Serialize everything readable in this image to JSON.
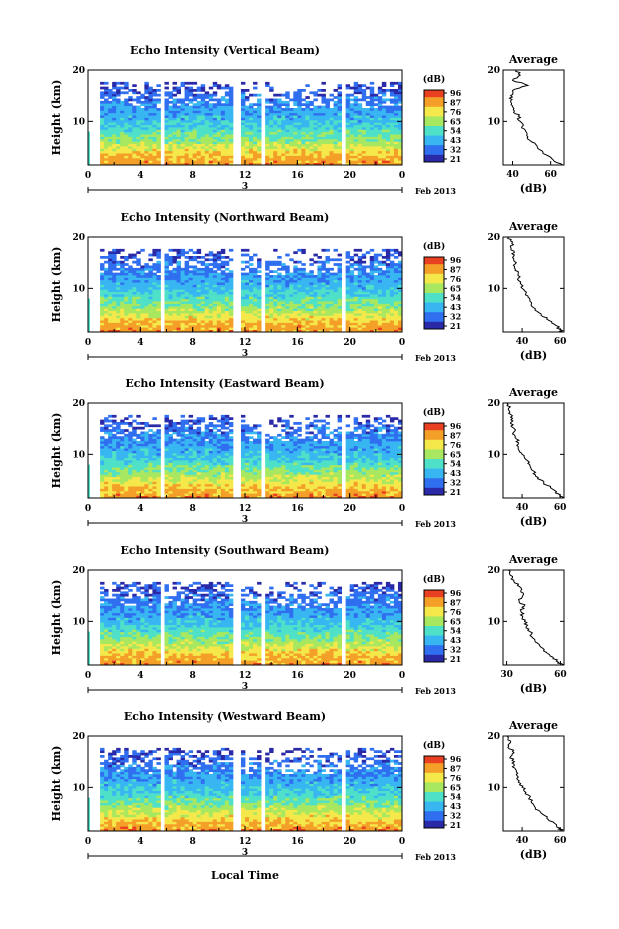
{
  "figure": {
    "xlabel": "Local Time",
    "date_label": "Feb 2013",
    "day_label": "3",
    "colorbar_unit": "(dB)",
    "colorbar_ticks": [
      "96",
      "87",
      "76",
      "65",
      "54",
      "43",
      "32",
      "21"
    ],
    "profile_title": "Average",
    "profile_xlabel": "(dB)",
    "height_label": "Height (km)",
    "colors": [
      "#2a2aa8",
      "#2f6ff0",
      "#38b6f2",
      "#4fe0c8",
      "#a8e860",
      "#f4e84a",
      "#f4a028",
      "#e84020"
    ]
  },
  "chart_data": [
    {
      "type": "heatmap",
      "title": "Echo Intensity (Vertical Beam)",
      "xlabel": "Local Time",
      "ylabel": "Height (km)",
      "x_ticks": [
        "0",
        "4",
        "8",
        "12",
        "16",
        "20",
        "0"
      ],
      "y_ticks": [
        "20",
        "10"
      ],
      "xlim": [
        0,
        24
      ],
      "ylim": [
        1.5,
        20
      ],
      "colorbar_ticks": [
        "96",
        "87",
        "76",
        "65",
        "54",
        "43",
        "32",
        "21"
      ],
      "colorbar_range_dB": [
        21,
        96
      ],
      "gaps_local_time": [
        [
          5.6,
          5.9
        ],
        [
          11.2,
          11.6
        ],
        [
          13.2,
          13.5
        ],
        [
          19.5,
          19.8
        ]
      ],
      "profile": {
        "title": "Average",
        "xlabel": "(dB)",
        "x_ticks": [
          "40",
          "60"
        ],
        "xlim": [
          35,
          67
        ],
        "y_ticks": [
          "20",
          "10"
        ],
        "heights_km": [
          1.5,
          2,
          3,
          4,
          5,
          6,
          7,
          8,
          9,
          10,
          11,
          12,
          13,
          14,
          15,
          16,
          17,
          18,
          19,
          20
        ],
        "values_dB": [
          66,
          63,
          60,
          56,
          53,
          50,
          48,
          47,
          45,
          44,
          43,
          41,
          40,
          39,
          39,
          40,
          48,
          40,
          44,
          42
        ]
      }
    },
    {
      "type": "heatmap",
      "title": "Echo Intensity (Northward Beam)",
      "xlabel": "Local Time",
      "ylabel": "Height (km)",
      "x_ticks": [
        "0",
        "4",
        "8",
        "12",
        "16",
        "20",
        "0"
      ],
      "y_ticks": [
        "20",
        "10"
      ],
      "xlim": [
        0,
        24
      ],
      "ylim": [
        1.5,
        20
      ],
      "colorbar_ticks": [
        "96",
        "87",
        "76",
        "65",
        "54",
        "43",
        "32",
        "21"
      ],
      "colorbar_range_dB": [
        21,
        96
      ],
      "gaps_local_time": [
        [
          5.6,
          5.9
        ],
        [
          11.2,
          11.6
        ],
        [
          13.2,
          13.5
        ],
        [
          19.5,
          19.8
        ]
      ],
      "profile": {
        "title": "Average",
        "xlabel": "(dB)",
        "x_ticks": [
          "40",
          "60"
        ],
        "xlim": [
          30,
          62
        ],
        "y_ticks": [
          "20",
          "10"
        ],
        "heights_km": [
          1.5,
          2,
          3,
          4,
          5,
          6,
          7,
          8,
          9,
          10,
          11,
          12,
          13,
          14,
          15,
          16,
          17,
          18,
          19,
          20
        ],
        "values_dB": [
          61,
          60,
          57,
          53,
          50,
          47,
          45,
          44,
          42,
          40,
          39,
          38,
          38,
          36,
          37,
          35,
          36,
          34,
          35,
          33
        ]
      }
    },
    {
      "type": "heatmap",
      "title": "Echo Intensity (Eastward Beam)",
      "xlabel": "Local Time",
      "ylabel": "Height (km)",
      "x_ticks": [
        "0",
        "4",
        "8",
        "12",
        "16",
        "20",
        "0"
      ],
      "y_ticks": [
        "20",
        "10"
      ],
      "xlim": [
        0,
        24
      ],
      "ylim": [
        1.5,
        20
      ],
      "colorbar_ticks": [
        "96",
        "87",
        "76",
        "65",
        "54",
        "43",
        "32",
        "21"
      ],
      "colorbar_range_dB": [
        21,
        96
      ],
      "gaps_local_time": [
        [
          5.6,
          5.9
        ],
        [
          11.2,
          11.6
        ],
        [
          13.2,
          13.5
        ],
        [
          19.5,
          19.8
        ]
      ],
      "profile": {
        "title": "Average",
        "xlabel": "(dB)",
        "x_ticks": [
          "40",
          "60"
        ],
        "xlim": [
          30,
          62
        ],
        "y_ticks": [
          "20",
          "10"
        ],
        "heights_km": [
          1.5,
          2,
          3,
          4,
          5,
          6,
          7,
          8,
          9,
          10,
          11,
          12,
          13,
          14,
          15,
          16,
          17,
          18,
          19,
          20
        ],
        "values_dB": [
          61,
          60,
          57,
          53,
          50,
          47,
          45,
          44,
          42,
          40,
          38,
          38,
          37,
          35,
          36,
          34,
          35,
          33,
          33,
          32
        ]
      }
    },
    {
      "type": "heatmap",
      "title": "Echo Intensity (Southward Beam)",
      "xlabel": "Local Time",
      "ylabel": "Height (km)",
      "x_ticks": [
        "0",
        "4",
        "8",
        "12",
        "16",
        "20",
        "0"
      ],
      "y_ticks": [
        "20",
        "10"
      ],
      "xlim": [
        0,
        24
      ],
      "ylim": [
        1.5,
        20
      ],
      "colorbar_ticks": [
        "96",
        "87",
        "76",
        "65",
        "54",
        "43",
        "32",
        "21"
      ],
      "colorbar_range_dB": [
        21,
        96
      ],
      "gaps_local_time": [
        [
          5.6,
          5.9
        ],
        [
          11.2,
          11.6
        ],
        [
          13.2,
          13.5
        ],
        [
          19.5,
          19.8
        ]
      ],
      "profile": {
        "title": "Average",
        "xlabel": "(dB)",
        "x_ticks": [
          "30",
          "60"
        ],
        "xlim": [
          28,
          62
        ],
        "y_ticks": [
          "20",
          "10"
        ],
        "heights_km": [
          1.5,
          2,
          3,
          4,
          5,
          6,
          7,
          8,
          9,
          10,
          11,
          12,
          13,
          14,
          15,
          16,
          17,
          18,
          19,
          20
        ],
        "values_dB": [
          61,
          59,
          56,
          52,
          49,
          46,
          44,
          43,
          41,
          40,
          39,
          38,
          40,
          37,
          39,
          38,
          36,
          34,
          32,
          31
        ]
      }
    },
    {
      "type": "heatmap",
      "title": "Echo Intensity (Westward Beam)",
      "xlabel": "Local Time",
      "ylabel": "Height (km)",
      "x_ticks": [
        "0",
        "4",
        "8",
        "12",
        "16",
        "20",
        "0"
      ],
      "y_ticks": [
        "20",
        "10"
      ],
      "xlim": [
        0,
        24
      ],
      "ylim": [
        1.5,
        20
      ],
      "colorbar_ticks": [
        "96",
        "87",
        "76",
        "65",
        "54",
        "43",
        "32",
        "21"
      ],
      "colorbar_range_dB": [
        21,
        96
      ],
      "gaps_local_time": [
        [
          5.6,
          5.9
        ],
        [
          11.2,
          11.6
        ],
        [
          13.2,
          13.5
        ],
        [
          19.5,
          19.8
        ]
      ],
      "profile": {
        "title": "Average",
        "xlabel": "(dB)",
        "x_ticks": [
          "40",
          "60"
        ],
        "xlim": [
          30,
          62
        ],
        "y_ticks": [
          "20",
          "10"
        ],
        "heights_km": [
          1.5,
          2,
          3,
          4,
          5,
          6,
          7,
          8,
          9,
          10,
          11,
          12,
          13,
          14,
          15,
          16,
          17,
          18,
          19,
          20
        ],
        "values_dB": [
          61,
          60,
          57,
          53,
          50,
          47,
          45,
          44,
          42,
          40,
          38,
          38,
          37,
          35,
          36,
          34,
          35,
          33,
          34,
          32
        ]
      }
    }
  ]
}
